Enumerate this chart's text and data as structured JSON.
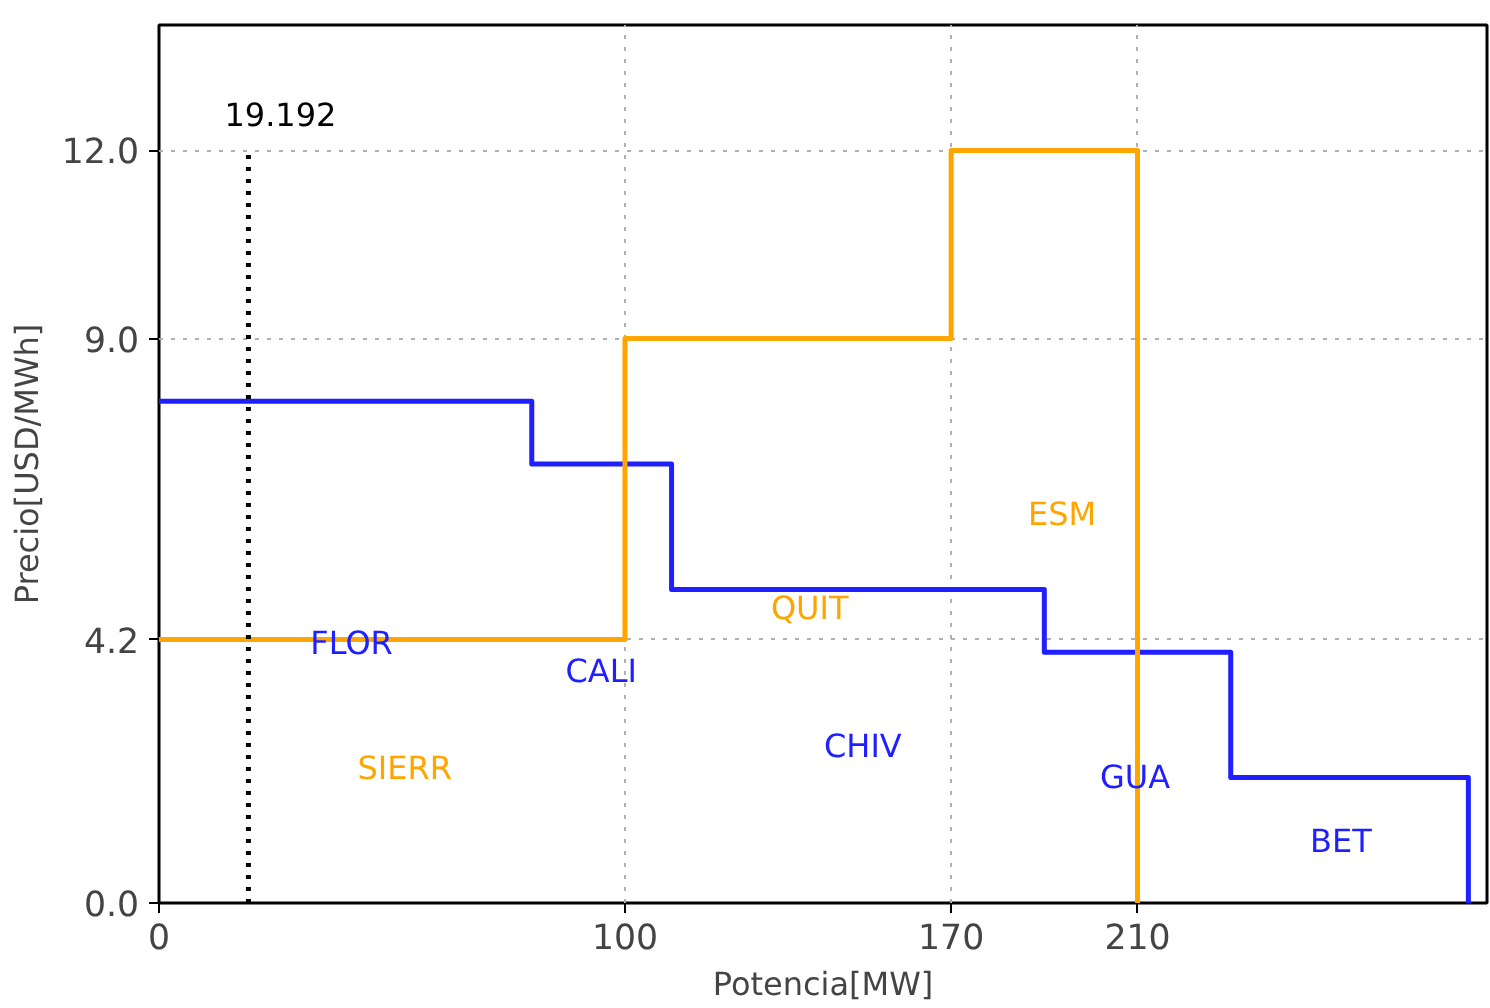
{
  "chart_data": {
    "type": "step",
    "xlabel": "Potencia[MW]",
    "ylabel": "Precio[USD/MWh]",
    "series": [
      {
        "color": "#1f1fff",
        "x": [
          0,
          80,
          110,
          190,
          230,
          281
        ],
        "values": [
          8.0,
          7.0,
          5.0,
          4.0,
          2.0,
          0
        ]
      },
      {
        "color": "#ffa500",
        "x": [
          0,
          100,
          170,
          210
        ],
        "values": [
          4.2,
          9.0,
          12.0,
          0
        ]
      }
    ],
    "xlim": [
      0,
      285
    ],
    "ylim": [
      0,
      14
    ],
    "xticks": [
      0,
      100,
      170,
      210
    ],
    "yticks": [
      {
        "value": 0,
        "label": "0.0"
      },
      {
        "value": 4.2,
        "label": "4.2"
      },
      {
        "value": 9,
        "label": "9.0"
      },
      {
        "value": 12,
        "label": "12.0"
      }
    ],
    "grid": true,
    "ref_lines": [
      {
        "axis": "x",
        "value": 19.192,
        "label": "19.192",
        "color": "#000000",
        "line_style": "dotted"
      }
    ],
    "annotations": [
      "FLOR",
      "CALI",
      "SIERR",
      "QUIT",
      "CHIV",
      "ESM",
      "GUA",
      "BET"
    ]
  }
}
